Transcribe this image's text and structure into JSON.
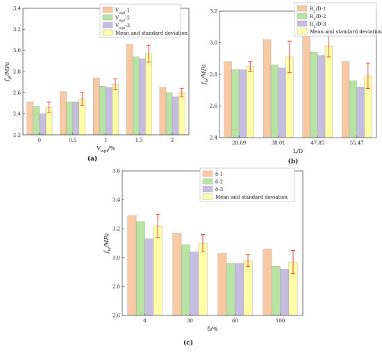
{
  "colors": {
    "s1": "#f8c9a2",
    "s2": "#b7e3a5",
    "s3": "#c7bde3",
    "mean": "#ffffa8",
    "error": "#e0302a",
    "edge": "#444444"
  },
  "chart_data": [
    {
      "type": "bar",
      "panel_label": "(a)",
      "xlabel": "V_wpf/%",
      "ylabel": "f_ft/MPa",
      "categories": [
        "0",
        "0.5",
        "1",
        "1.5",
        "2"
      ],
      "ylim": [
        2.2,
        3.4
      ],
      "yticks": [
        "2.2",
        "2.4",
        "2.6",
        "2.8",
        "3.0",
        "3.2",
        "3.4"
      ],
      "grid": false,
      "legend_position": "top-right",
      "series": [
        {
          "name": "V_wpf-1",
          "values": [
            2.51,
            2.61,
            2.74,
            3.06,
            2.65
          ]
        },
        {
          "name": "V_wpf-2",
          "values": [
            2.47,
            2.51,
            2.66,
            2.94,
            2.6
          ]
        },
        {
          "name": "V_wpf-3",
          "values": [
            2.4,
            2.51,
            2.65,
            2.92,
            2.56
          ]
        },
        {
          "name": "Mean and standard deviation",
          "values": [
            2.46,
            2.54,
            2.68,
            2.97,
            2.6
          ],
          "error": [
            0.05,
            0.06,
            0.05,
            0.08,
            0.04
          ]
        }
      ]
    },
    {
      "type": "bar",
      "panel_label": "(b)",
      "xlabel": "L/D",
      "ylabel": "f_ts/MPa",
      "categories": [
        "28.69",
        "38.01",
        "47.85",
        "55.47"
      ],
      "ylim": [
        2.4,
        3.2
      ],
      "yticks": [
        "2.4",
        "2.6",
        "2.8",
        "3.0",
        "3.2"
      ],
      "grid": false,
      "legend_position": "top-right",
      "series": [
        {
          "name": "R_L/D-1",
          "values": [
            2.88,
            3.02,
            3.07,
            2.88
          ]
        },
        {
          "name": "R_L/D-2",
          "values": [
            2.83,
            2.86,
            2.94,
            2.76
          ]
        },
        {
          "name": "R_L/D-3",
          "values": [
            2.83,
            2.84,
            2.92,
            2.72
          ]
        },
        {
          "name": "Mean and standard deviation",
          "values": [
            2.85,
            2.91,
            2.98,
            2.79
          ],
          "error": [
            0.03,
            0.1,
            0.07,
            0.08
          ]
        }
      ]
    },
    {
      "type": "bar",
      "panel_label": "(c)",
      "xlabel": "δ/%",
      "ylabel": "f_ts/MPa",
      "categories": [
        "0",
        "30",
        "60",
        "100"
      ],
      "ylim": [
        2.6,
        3.6
      ],
      "yticks": [
        "2.6",
        "2.8",
        "3.0",
        "3.2",
        "3.4",
        "3.6"
      ],
      "grid": false,
      "legend_position": "top-right",
      "series": [
        {
          "name": "δ-1",
          "values": [
            3.29,
            3.17,
            3.03,
            3.06
          ]
        },
        {
          "name": "δ-2",
          "values": [
            3.25,
            3.09,
            2.96,
            2.94
          ]
        },
        {
          "name": "δ-3",
          "values": [
            3.13,
            3.04,
            2.96,
            2.92
          ]
        },
        {
          "name": "Mean and standard deviation",
          "values": [
            3.22,
            3.1,
            2.98,
            2.97
          ],
          "error": [
            0.08,
            0.06,
            0.04,
            0.08
          ]
        }
      ]
    }
  ]
}
